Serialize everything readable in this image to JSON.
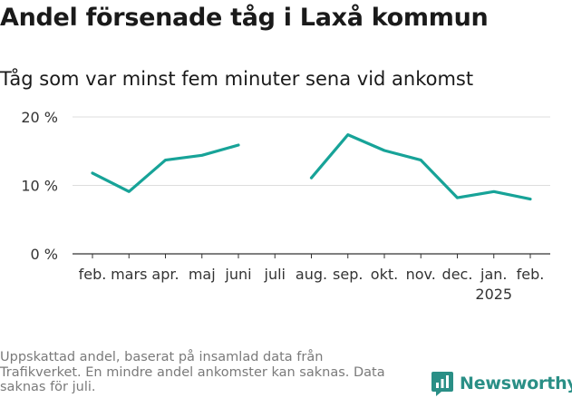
{
  "title": "Andel försenade tåg i Laxå kommun",
  "subtitle": "Tåg som var minst fem minuter sena vid ankomst",
  "footnote": "Uppskattad andel, baserat på insamlad data från Trafikverket. En mindre andel ankomster kan saknas. Data saknas för juli.",
  "brand": {
    "name": "Newsworthy",
    "icon": "newsworthy-logo-icon"
  },
  "colors": {
    "line": "#17a398",
    "grid": "#dddddd",
    "axis": "#333333",
    "brand": "#2a8f86"
  },
  "chart_data": {
    "type": "line",
    "title": "Andel försenade tåg i Laxå kommun",
    "subtitle": "Tåg som var minst fem minuter sena vid ankomst",
    "categories": [
      "feb.",
      "mars",
      "apr.",
      "maj",
      "juni",
      "juli",
      "aug.",
      "sep.",
      "okt.",
      "nov.",
      "dec.",
      "jan.",
      "feb."
    ],
    "category_sublabels": [
      "",
      "",
      "",
      "",
      "",
      "",
      "",
      "",
      "",
      "",
      "",
      "2025",
      ""
    ],
    "values": [
      11.8,
      9.1,
      13.7,
      14.4,
      15.9,
      null,
      11.1,
      17.4,
      15.1,
      13.7,
      8.2,
      9.1,
      8.0
    ],
    "ylim": [
      0,
      20
    ],
    "yticks": [
      0,
      10,
      20
    ],
    "ytick_labels": [
      "0 %",
      "10 %",
      "20 %"
    ],
    "xlabel": "",
    "ylabel": "",
    "grid": true,
    "legend": "none"
  }
}
